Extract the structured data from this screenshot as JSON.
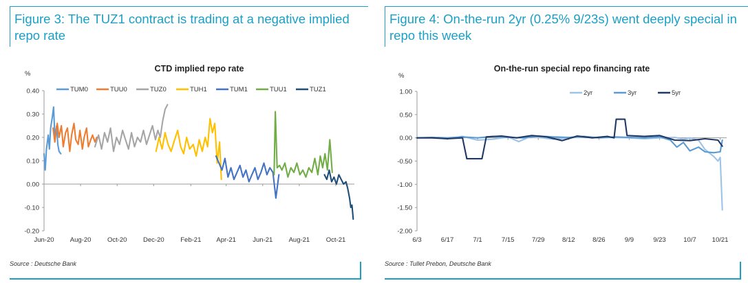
{
  "colors": {
    "accent": "#1b9fc6"
  },
  "left": {
    "figure_title": "Figure 3: The TUZ1 contract is trading at a negative implied repo rate",
    "source": "Source : Deutsche Bank"
  },
  "right": {
    "figure_title": "Figure 4: On-the-run 2yr (0.25% 9/23s) went deeply special in repo this week",
    "source": "Source : Tullet Prebon, Deutsche Bank"
  },
  "chart_data": [
    {
      "type": "line",
      "title": "CTD implied repo rate",
      "ylabel": "%",
      "ylim": [
        -0.2,
        0.4
      ],
      "yticks": [
        -0.2,
        -0.1,
        0.0,
        0.1,
        0.2,
        0.3,
        0.4
      ],
      "ytick_labels": [
        "-0.20",
        "-0.10",
        "0.00",
        "0.10",
        "0.20",
        "0.30",
        "0.40"
      ],
      "xlim": [
        "2020-06-01",
        "2021-11-01"
      ],
      "xticks": [
        "2020-06-01",
        "2020-08-01",
        "2020-10-01",
        "2020-12-01",
        "2021-02-01",
        "2021-04-01",
        "2021-06-01",
        "2021-08-01",
        "2021-10-01"
      ],
      "xtick_labels": [
        "Jun-20",
        "Aug-20",
        "Oct-20",
        "Dec-20",
        "Feb-21",
        "Apr-21",
        "Jun-21",
        "Aug-21",
        "Oct-21"
      ],
      "grid": false,
      "legend_position": "top",
      "series": [
        {
          "name": "TUM0",
          "color": "#5b9bd5",
          "x": [
            "2020-06-01",
            "2020-06-03",
            "2020-06-05",
            "2020-06-08",
            "2020-06-10",
            "2020-06-12",
            "2020-06-15",
            "2020-06-17",
            "2020-06-19",
            "2020-06-22",
            "2020-06-24",
            "2020-06-26",
            "2020-06-29"
          ],
          "y": [
            0.13,
            0.06,
            0.15,
            0.21,
            0.15,
            0.24,
            0.29,
            0.33,
            0.2,
            0.25,
            0.17,
            0.14,
            0.13
          ]
        },
        {
          "name": "TUU0",
          "color": "#ed7d31",
          "x": [
            "2020-06-16",
            "2020-06-19",
            "2020-06-23",
            "2020-06-26",
            "2020-06-30",
            "2020-07-03",
            "2020-07-07",
            "2020-07-10",
            "2020-07-14",
            "2020-07-17",
            "2020-07-21",
            "2020-07-24",
            "2020-07-28",
            "2020-07-31",
            "2020-08-04",
            "2020-08-07",
            "2020-08-11",
            "2020-08-14",
            "2020-08-18",
            "2020-08-21",
            "2020-08-25",
            "2020-08-28"
          ],
          "y": [
            0.24,
            0.18,
            0.26,
            0.2,
            0.25,
            0.16,
            0.22,
            0.24,
            0.14,
            0.21,
            0.26,
            0.19,
            0.17,
            0.23,
            0.15,
            0.2,
            0.24,
            0.16,
            0.19,
            0.21,
            0.18,
            0.2
          ]
        },
        {
          "name": "TUZ0",
          "color": "#a5a5a5",
          "x": [
            "2020-08-25",
            "2020-08-31",
            "2020-09-05",
            "2020-09-10",
            "2020-09-15",
            "2020-09-20",
            "2020-09-25",
            "2020-09-30",
            "2020-10-05",
            "2020-10-10",
            "2020-10-15",
            "2020-10-20",
            "2020-10-25",
            "2020-10-30",
            "2020-11-04",
            "2020-11-09",
            "2020-11-14",
            "2020-11-19",
            "2020-11-24",
            "2020-11-29",
            "2020-12-04",
            "2020-12-08",
            "2020-12-12",
            "2020-12-16",
            "2020-12-20",
            "2020-12-24"
          ],
          "y": [
            0.16,
            0.21,
            0.15,
            0.22,
            0.18,
            0.24,
            0.14,
            0.2,
            0.17,
            0.23,
            0.19,
            0.15,
            0.22,
            0.16,
            0.2,
            0.18,
            0.23,
            0.17,
            0.21,
            0.25,
            0.19,
            0.23,
            0.2,
            0.27,
            0.32,
            0.34
          ]
        },
        {
          "name": "TUH1",
          "color": "#ffc000",
          "x": [
            "2020-12-05",
            "2020-12-10",
            "2020-12-15",
            "2020-12-20",
            "2020-12-25",
            "2020-12-30",
            "2021-01-05",
            "2021-01-10",
            "2021-01-15",
            "2021-01-20",
            "2021-01-25",
            "2021-01-30",
            "2021-02-05",
            "2021-02-10",
            "2021-02-15",
            "2021-02-20",
            "2021-02-25",
            "2021-03-01",
            "2021-03-05",
            "2021-03-09",
            "2021-03-13",
            "2021-03-17",
            "2021-03-21",
            "2021-03-24"
          ],
          "y": [
            0.14,
            0.2,
            0.15,
            0.22,
            0.17,
            0.14,
            0.19,
            0.23,
            0.16,
            0.13,
            0.2,
            0.15,
            0.17,
            0.12,
            0.19,
            0.14,
            0.2,
            0.16,
            0.28,
            0.22,
            0.26,
            0.09,
            0.18,
            0.02
          ]
        },
        {
          "name": "TUM1",
          "color": "#4472c4",
          "x": [
            "2021-03-15",
            "2021-03-20",
            "2021-03-25",
            "2021-03-30",
            "2021-04-04",
            "2021-04-09",
            "2021-04-14",
            "2021-04-19",
            "2021-04-24",
            "2021-04-29",
            "2021-05-04",
            "2021-05-09",
            "2021-05-14",
            "2021-05-19",
            "2021-05-24",
            "2021-05-29",
            "2021-06-03",
            "2021-06-08",
            "2021-06-13",
            "2021-06-18",
            "2021-06-23",
            "2021-06-28"
          ],
          "y": [
            0.12,
            0.09,
            0.06,
            0.11,
            0.03,
            0.07,
            0.02,
            0.05,
            0.08,
            0.03,
            0.06,
            0.01,
            0.04,
            0.07,
            0.02,
            0.05,
            0.09,
            0.04,
            0.07,
            0.05,
            -0.06,
            0.04
          ]
        },
        {
          "name": "TUU1",
          "color": "#70ad47",
          "x": [
            "2021-06-20",
            "2021-06-22",
            "2021-06-25",
            "2021-06-29",
            "2021-07-03",
            "2021-07-08",
            "2021-07-13",
            "2021-07-18",
            "2021-07-23",
            "2021-07-28",
            "2021-08-02",
            "2021-08-07",
            "2021-08-12",
            "2021-08-17",
            "2021-08-22",
            "2021-08-27",
            "2021-09-01",
            "2021-09-05",
            "2021-09-09",
            "2021-09-13",
            "2021-09-17",
            "2021-09-21",
            "2021-09-25"
          ],
          "y": [
            0.04,
            0.31,
            0.07,
            0.08,
            0.06,
            0.09,
            0.03,
            0.07,
            0.05,
            0.09,
            0.04,
            0.06,
            0.03,
            0.07,
            0.05,
            0.11,
            0.04,
            0.12,
            0.07,
            0.13,
            0.06,
            0.19,
            0.05
          ]
        },
        {
          "name": "TUZ1",
          "color": "#1f4e79",
          "x": [
            "2021-09-12",
            "2021-09-16",
            "2021-09-20",
            "2021-09-24",
            "2021-09-28",
            "2021-10-02",
            "2021-10-06",
            "2021-10-10",
            "2021-10-14",
            "2021-10-18",
            "2021-10-21",
            "2021-10-24",
            "2021-10-26",
            "2021-10-28",
            "2021-10-30"
          ],
          "y": [
            0.04,
            0.02,
            0.06,
            0.01,
            0.03,
            0.0,
            0.04,
            0.02,
            0.0,
            0.01,
            -0.02,
            -0.06,
            -0.1,
            -0.09,
            -0.15
          ]
        }
      ]
    },
    {
      "type": "line",
      "title": "On-the-run special repo financing rate",
      "ylabel": "%",
      "ylim": [
        -2.0,
        1.0
      ],
      "yticks": [
        -2.0,
        -1.5,
        -1.0,
        -0.5,
        0.0,
        0.5,
        1.0
      ],
      "ytick_labels": [
        "-2.00",
        "-1.50",
        "-1.00",
        "-0.50",
        "0.00",
        "0.50",
        "1.00"
      ],
      "xlim": [
        "2021-06-03",
        "2021-10-24"
      ],
      "xticks": [
        "2021-06-03",
        "2021-06-17",
        "2021-07-01",
        "2021-07-15",
        "2021-07-29",
        "2021-08-12",
        "2021-08-26",
        "2021-09-09",
        "2021-09-23",
        "2021-10-07",
        "2021-10-21"
      ],
      "xtick_labels": [
        "6/3",
        "6/17",
        "7/1",
        "7/15",
        "7/29",
        "8/12",
        "8/26",
        "9/9",
        "9/23",
        "10/7",
        "10/21"
      ],
      "grid": false,
      "legend_position": "top-right",
      "series": [
        {
          "name": "2yr",
          "color": "#9dc3e6",
          "x": [
            "2021-06-03",
            "2021-06-10",
            "2021-06-17",
            "2021-06-24",
            "2021-07-01",
            "2021-07-08",
            "2021-07-15",
            "2021-07-20",
            "2021-07-25",
            "2021-07-29",
            "2021-08-05",
            "2021-08-12",
            "2021-08-19",
            "2021-08-26",
            "2021-09-02",
            "2021-09-09",
            "2021-09-16",
            "2021-09-23",
            "2021-09-30",
            "2021-10-04",
            "2021-10-07",
            "2021-10-11",
            "2021-10-14",
            "2021-10-18",
            "2021-10-20",
            "2021-10-21",
            "2021-10-22"
          ],
          "y": [
            0.0,
            0.0,
            -0.02,
            0.03,
            -0.05,
            -0.03,
            0.02,
            -0.08,
            0.02,
            0.01,
            -0.03,
            0.0,
            0.02,
            0.0,
            0.01,
            0.0,
            -0.02,
            0.0,
            0.01,
            -0.03,
            0.0,
            -0.05,
            -0.25,
            -0.4,
            -0.5,
            -0.42,
            -1.55
          ]
        },
        {
          "name": "3yr",
          "color": "#5b9bd5",
          "x": [
            "2021-06-03",
            "2021-06-10",
            "2021-06-17",
            "2021-06-24",
            "2021-07-01",
            "2021-07-08",
            "2021-07-15",
            "2021-07-22",
            "2021-07-29",
            "2021-08-05",
            "2021-08-12",
            "2021-08-19",
            "2021-08-26",
            "2021-09-02",
            "2021-09-09",
            "2021-09-16",
            "2021-09-23",
            "2021-09-28",
            "2021-10-01",
            "2021-10-04",
            "2021-10-07",
            "2021-10-11",
            "2021-10-14",
            "2021-10-18",
            "2021-10-21",
            "2021-10-22"
          ],
          "y": [
            0.0,
            0.01,
            0.0,
            0.02,
            0.0,
            0.03,
            0.01,
            0.0,
            0.04,
            0.02,
            0.01,
            0.03,
            0.0,
            0.02,
            0.01,
            0.0,
            0.02,
            -0.05,
            -0.2,
            -0.1,
            -0.28,
            -0.2,
            -0.3,
            -0.32,
            -0.3,
            -0.05
          ]
        },
        {
          "name": "5yr",
          "color": "#203864",
          "x": [
            "2021-06-03",
            "2021-06-10",
            "2021-06-17",
            "2021-06-24",
            "2021-06-26",
            "2021-07-03",
            "2021-07-05",
            "2021-07-12",
            "2021-07-19",
            "2021-07-26",
            "2021-08-02",
            "2021-08-09",
            "2021-08-16",
            "2021-08-23",
            "2021-08-30",
            "2021-09-02",
            "2021-09-03",
            "2021-09-07",
            "2021-09-08",
            "2021-09-16",
            "2021-09-23",
            "2021-09-30",
            "2021-10-07",
            "2021-10-14",
            "2021-10-20",
            "2021-10-22"
          ],
          "y": [
            0.0,
            0.0,
            -0.02,
            0.0,
            -0.45,
            -0.45,
            0.02,
            0.04,
            0.0,
            0.05,
            0.02,
            -0.06,
            0.04,
            0.0,
            0.03,
            0.0,
            0.4,
            0.4,
            0.05,
            0.03,
            0.05,
            -0.05,
            -0.06,
            -0.02,
            -0.05,
            -0.18
          ]
        }
      ]
    }
  ]
}
